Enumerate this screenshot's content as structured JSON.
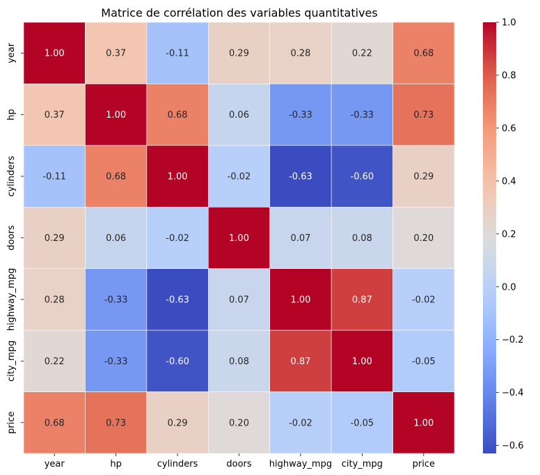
{
  "chart_data": {
    "type": "heatmap",
    "title": "Matrice de corrélation des variables quantitatives",
    "x_categories": [
      "year",
      "hp",
      "cylinders",
      "doors",
      "highway_mpg",
      "city_mpg",
      "price"
    ],
    "y_categories": [
      "year",
      "hp",
      "cylinders",
      "doors",
      "highway_mpg",
      "city_mpg",
      "price"
    ],
    "values": [
      [
        1.0,
        0.37,
        -0.11,
        0.29,
        0.28,
        0.22,
        0.68
      ],
      [
        0.37,
        1.0,
        0.68,
        0.06,
        -0.33,
        -0.33,
        0.73
      ],
      [
        -0.11,
        0.68,
        1.0,
        -0.02,
        -0.63,
        -0.6,
        0.29
      ],
      [
        0.29,
        0.06,
        -0.02,
        1.0,
        0.07,
        0.08,
        0.2
      ],
      [
        0.28,
        -0.33,
        -0.63,
        0.07,
        1.0,
        0.87,
        -0.02
      ],
      [
        0.22,
        -0.33,
        -0.6,
        0.08,
        0.87,
        1.0,
        -0.05
      ],
      [
        0.68,
        0.73,
        0.29,
        0.2,
        -0.02,
        -0.05,
        1.0
      ]
    ],
    "annotation_format": "2 decimals",
    "colormap": "coolwarm",
    "color_range": [
      -0.63,
      1.0
    ],
    "colorbar": {
      "position": "right",
      "ticks": [
        -0.6,
        -0.4,
        -0.2,
        0.0,
        0.2,
        0.4,
        0.6,
        0.8,
        1.0
      ],
      "tick_labels": [
        "−0.6",
        "−0.4",
        "−0.2",
        "0.0",
        "0.2",
        "0.4",
        "0.6",
        "0.8",
        "1.0"
      ]
    },
    "cell_border_color": "#ffffff",
    "grid": false
  }
}
